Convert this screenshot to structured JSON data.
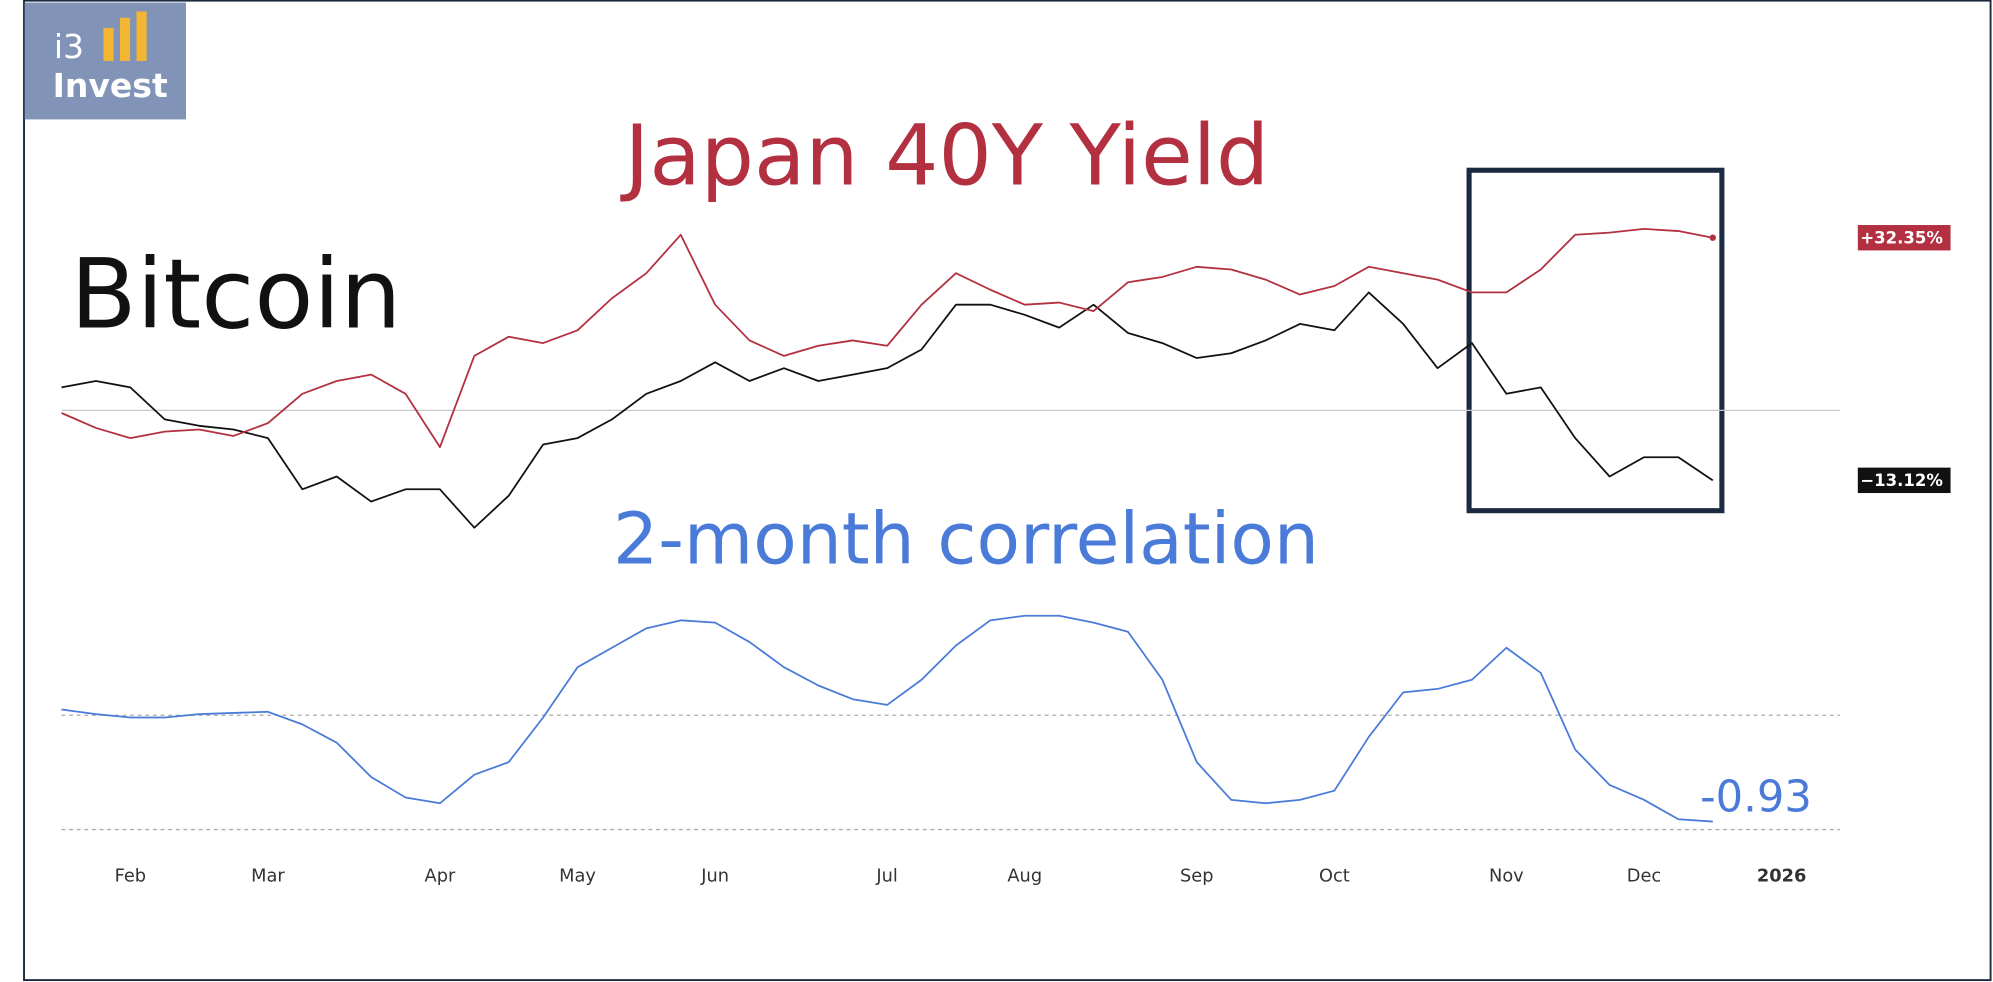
{
  "logo": {
    "line1": "i3",
    "line2": "Invest"
  },
  "chart_data": {
    "type": "line",
    "categories": [
      null,
      null,
      "Feb",
      null,
      null,
      null,
      "Mar",
      null,
      null,
      null,
      null,
      "Apr",
      null,
      null,
      null,
      "May",
      null,
      null,
      null,
      "Jun",
      null,
      null,
      null,
      null,
      "Jul",
      null,
      null,
      null,
      "Aug",
      null,
      null,
      null,
      null,
      "Sep",
      null,
      null,
      null,
      "Oct",
      null,
      null,
      null,
      null,
      "Nov",
      null,
      null,
      null,
      "Dec",
      null,
      null,
      null,
      "2026"
    ],
    "panels": [
      {
        "ylim": [
          -25,
          50
        ],
        "hlines": [
          0
        ],
        "series": [
          {
            "name": "Bitcoin",
            "color": "#111111",
            "end_label": "−13.12%",
            "values": [
              4.3,
              5.5,
              4.3,
              -1.7,
              -2.9,
              -3.6,
              -5.2,
              -14.8,
              -12.4,
              -17.1,
              -14.8,
              -14.8,
              -22,
              -16,
              -6.4,
              -5.2,
              -1.7,
              3.1,
              5.5,
              9,
              5.5,
              7.9,
              5.5,
              6.7,
              7.9,
              11.4,
              19.8,
              19.8,
              17.9,
              15.5,
              19.8,
              14.5,
              12.6,
              9.8,
              10.7,
              13.1,
              16.2,
              15,
              22.1,
              16.2,
              7.9,
              12.6,
              3.1,
              4.3,
              -5.2,
              -12.4,
              -8.8,
              -8.8,
              -13.12,
              null,
              null
            ]
          },
          {
            "name": "Japan 40Y Yield",
            "color": "#b23040",
            "end_label": "+32.35%",
            "values": [
              -0.5,
              -3.3,
              -5.2,
              -4,
              -3.6,
              -4.8,
              -2.4,
              3.1,
              5.5,
              6.7,
              3.1,
              -6.9,
              10.2,
              13.8,
              12.6,
              15,
              21,
              25.7,
              32.9,
              19.8,
              13.1,
              10.2,
              12.1,
              13.1,
              12.1,
              19.8,
              25.7,
              22.6,
              19.8,
              20.2,
              18.6,
              24,
              25,
              26.9,
              26.4,
              24.5,
              21.7,
              23.3,
              26.9,
              25.7,
              24.5,
              22.1,
              22.1,
              26.4,
              32.9,
              33.3,
              34,
              33.6,
              32.35,
              null,
              null
            ]
          }
        ]
      },
      {
        "ylim": [
          -1,
          1
        ],
        "hlines": [
          0,
          -1
        ],
        "series": [
          {
            "name": "2-month correlation",
            "color": "#4a7bd8",
            "end_label": "-0.93",
            "values": [
              0.05,
              0.01,
              -0.02,
              -0.02,
              0.01,
              0.02,
              0.03,
              -0.08,
              -0.24,
              -0.54,
              -0.72,
              -0.77,
              -0.52,
              -0.41,
              -0.02,
              0.42,
              0.59,
              0.76,
              0.83,
              0.81,
              0.64,
              0.42,
              0.26,
              0.14,
              0.09,
              0.31,
              0.61,
              0.83,
              0.87,
              0.87,
              0.81,
              0.73,
              0.31,
              -0.41,
              -0.74,
              -0.77,
              -0.74,
              -0.66,
              -0.19,
              0.2,
              0.23,
              0.31,
              0.59,
              0.37,
              -0.3,
              -0.61,
              -0.74,
              -0.91,
              -0.93,
              null,
              null
            ]
          }
        ]
      }
    ]
  }
}
